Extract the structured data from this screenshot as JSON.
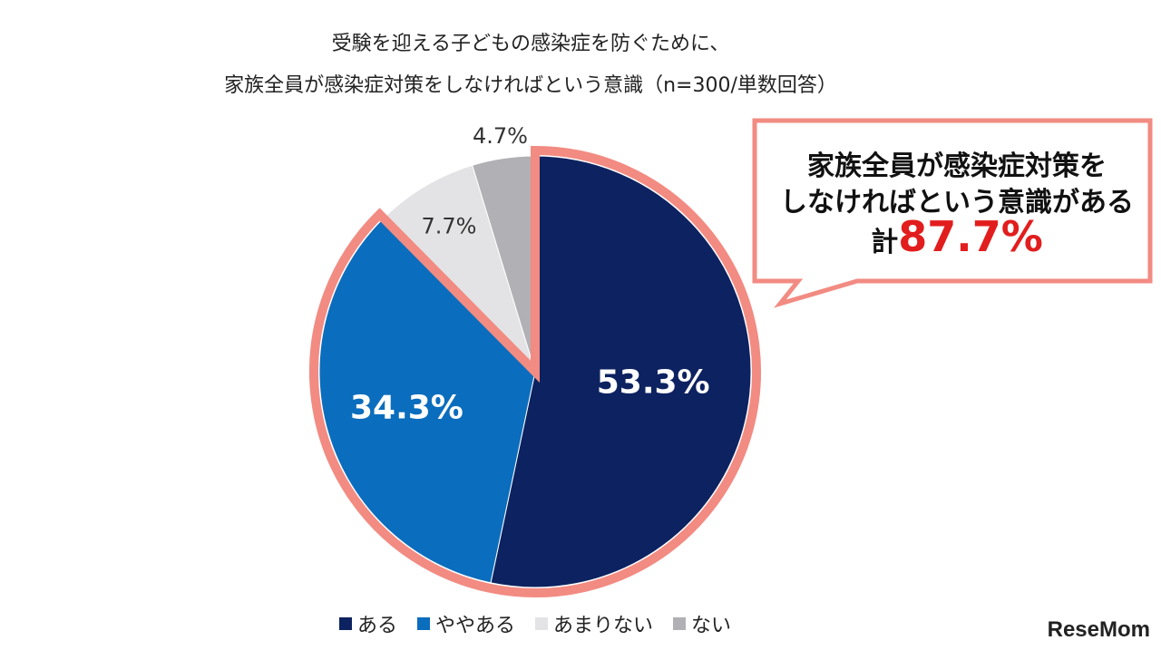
{
  "title_line1": "受験を迎える子どもの感染症を防ぐために、",
  "title_line2": "家族全員が感染症対策をしなければという意識（n=300/単数回答）",
  "callout": {
    "line1": "家族全員が感染症対策を",
    "line2": "しなければという意識がある",
    "prefix": "計",
    "total": "87.7%"
  },
  "brand": "ReseMom",
  "chart_data": {
    "type": "pie",
    "slices": [
      {
        "label": "ある",
        "value": 53.3,
        "display": "53.3%",
        "color": "#0d2260",
        "label_color": "#ffffff",
        "highlight": true
      },
      {
        "label": "ややある",
        "value": 34.3,
        "display": "34.3%",
        "color": "#0b6dbd",
        "label_color": "#ffffff",
        "highlight": true
      },
      {
        "label": "あまりない",
        "value": 7.7,
        "display": "7.7%",
        "color": "#e3e3e6",
        "label_color": "#333333",
        "highlight": false
      },
      {
        "label": "ない",
        "value": 4.7,
        "display": "4.7%",
        "color": "#b0b0b5",
        "label_color": "#333333",
        "highlight": false
      }
    ],
    "highlight_color": "#f28b82",
    "legend_position": "bottom"
  }
}
